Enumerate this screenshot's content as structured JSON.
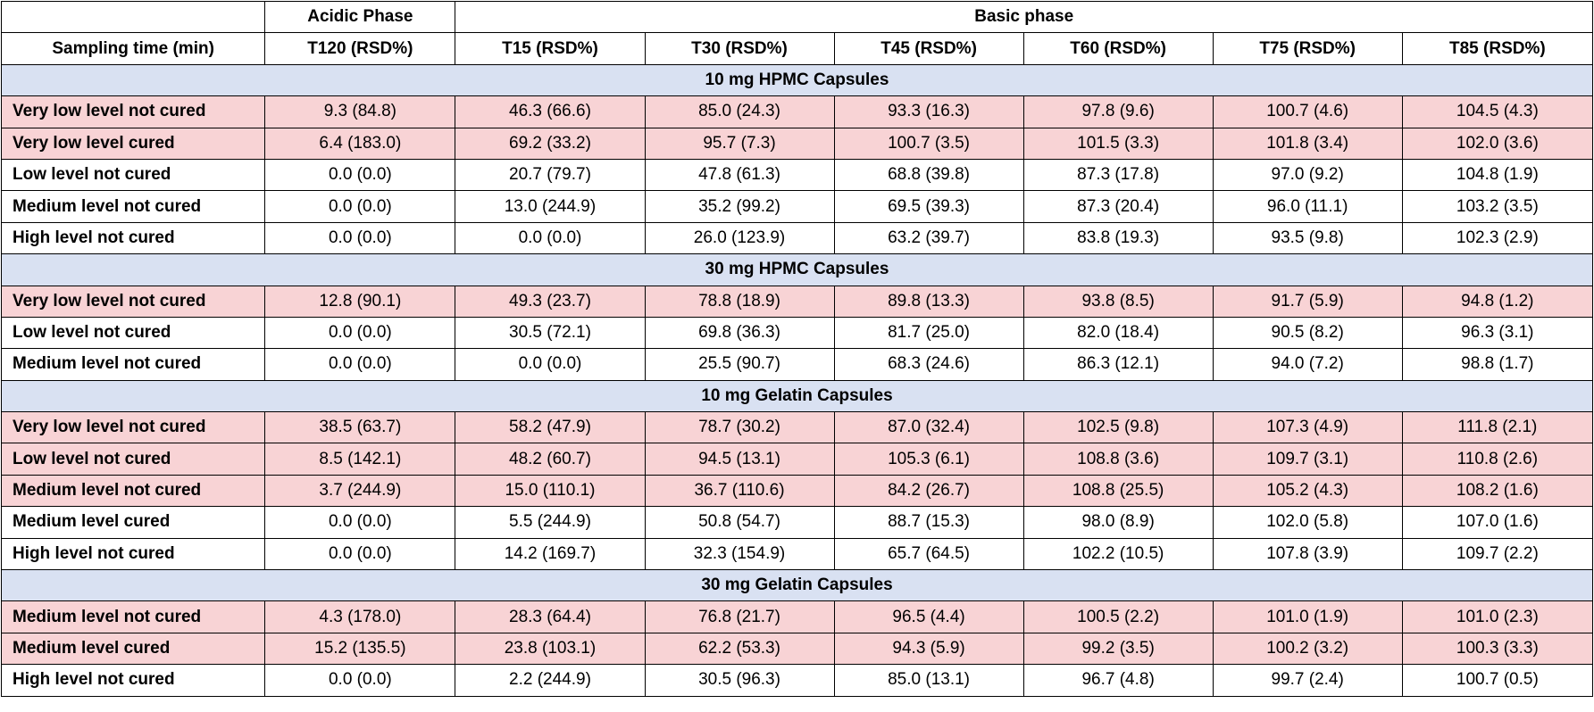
{
  "header": {
    "phase_blank": "",
    "acidic": "Acidic Phase",
    "basic": "Basic phase",
    "sampling_label": "Sampling time (min)",
    "columns": [
      "T120 (RSD%)",
      "T15 (RSD%)",
      "T30 (RSD%)",
      "T45 (RSD%)",
      "T60 (RSD%)",
      "T75 (RSD%)",
      "T85 (RSD%)"
    ]
  },
  "sections": [
    {
      "title": "10 mg HPMC Capsules",
      "rows": [
        {
          "label": "Very low level not cured",
          "highlight": true,
          "values": [
            "9.3 (84.8)",
            "46.3 (66.6)",
            "85.0 (24.3)",
            "93.3 (16.3)",
            "97.8 (9.6)",
            "100.7 (4.6)",
            "104.5 (4.3)"
          ]
        },
        {
          "label": "Very low level cured",
          "highlight": true,
          "values": [
            "6.4 (183.0)",
            "69.2 (33.2)",
            "95.7 (7.3)",
            "100.7 (3.5)",
            "101.5 (3.3)",
            "101.8 (3.4)",
            "102.0 (3.6)"
          ]
        },
        {
          "label": "Low level not cured",
          "highlight": false,
          "values": [
            "0.0 (0.0)",
            "20.7 (79.7)",
            "47.8 (61.3)",
            "68.8 (39.8)",
            "87.3 (17.8)",
            "97.0 (9.2)",
            "104.8 (1.9)"
          ]
        },
        {
          "label": "Medium level not cured",
          "highlight": false,
          "values": [
            "0.0 (0.0)",
            "13.0 (244.9)",
            "35.2 (99.2)",
            "69.5 (39.3)",
            "87.3 (20.4)",
            "96.0 (11.1)",
            "103.2 (3.5)"
          ]
        },
        {
          "label": "High level not cured",
          "highlight": false,
          "values": [
            "0.0 (0.0)",
            "0.0 (0.0)",
            "26.0 (123.9)",
            "63.2 (39.7)",
            "83.8 (19.3)",
            "93.5 (9.8)",
            "102.3 (2.9)"
          ]
        }
      ]
    },
    {
      "title": "30 mg HPMC Capsules",
      "rows": [
        {
          "label": "Very low level not cured",
          "highlight": true,
          "values": [
            "12.8 (90.1)",
            "49.3 (23.7)",
            "78.8 (18.9)",
            "89.8 (13.3)",
            "93.8 (8.5)",
            "91.7 (5.9)",
            "94.8 (1.2)"
          ]
        },
        {
          "label": "Low level not cured",
          "highlight": false,
          "values": [
            "0.0 (0.0)",
            "30.5 (72.1)",
            "69.8 (36.3)",
            "81.7 (25.0)",
            "82.0 (18.4)",
            "90.5 (8.2)",
            "96.3 (3.1)"
          ]
        },
        {
          "label": "Medium level not cured",
          "highlight": false,
          "values": [
            "0.0 (0.0)",
            "0.0 (0.0)",
            "25.5 (90.7)",
            "68.3 (24.6)",
            "86.3 (12.1)",
            "94.0 (7.2)",
            "98.8 (1.7)"
          ]
        }
      ]
    },
    {
      "title": "10 mg Gelatin Capsules",
      "rows": [
        {
          "label": "Very low level not cured",
          "highlight": true,
          "values": [
            "38.5 (63.7)",
            "58.2 (47.9)",
            "78.7 (30.2)",
            "87.0 (32.4)",
            "102.5 (9.8)",
            "107.3 (4.9)",
            "111.8 (2.1)"
          ]
        },
        {
          "label": "Low level not cured",
          "highlight": true,
          "values": [
            "8.5 (142.1)",
            "48.2 (60.7)",
            "94.5 (13.1)",
            "105.3 (6.1)",
            "108.8 (3.6)",
            "109.7 (3.1)",
            "110.8 (2.6)"
          ]
        },
        {
          "label": "Medium level not cured",
          "highlight": true,
          "values": [
            "3.7 (244.9)",
            "15.0 (110.1)",
            "36.7 (110.6)",
            "84.2 (26.7)",
            "108.8 (25.5)",
            "105.2 (4.3)",
            "108.2 (1.6)"
          ]
        },
        {
          "label": "Medium level cured",
          "highlight": false,
          "values": [
            "0.0 (0.0)",
            "5.5 (244.9)",
            "50.8 (54.7)",
            "88.7 (15.3)",
            "98.0 (8.9)",
            "102.0 (5.8)",
            "107.0 (1.6)"
          ]
        },
        {
          "label": "High level not cured",
          "highlight": false,
          "values": [
            "0.0 (0.0)",
            "14.2 (169.7)",
            "32.3 (154.9)",
            "65.7 (64.5)",
            "102.2 (10.5)",
            "107.8 (3.9)",
            "109.7 (2.2)"
          ]
        }
      ]
    },
    {
      "title": "30 mg Gelatin Capsules",
      "rows": [
        {
          "label": "Medium level not cured",
          "highlight": true,
          "values": [
            "4.3 (178.0)",
            "28.3 (64.4)",
            "76.8 (21.7)",
            "96.5 (4.4)",
            "100.5 (2.2)",
            "101.0 (1.9)",
            "101.0 (2.3)"
          ]
        },
        {
          "label": "Medium level cured",
          "highlight": true,
          "values": [
            "15.2 (135.5)",
            "23.8 (103.1)",
            "62.2 (53.3)",
            "94.3 (5.9)",
            "99.2 (3.5)",
            "100.2 (3.2)",
            "100.3 (3.3)"
          ]
        },
        {
          "label": "High level not cured",
          "highlight": false,
          "values": [
            "0.0 (0.0)",
            "2.2 (244.9)",
            "30.5 (96.3)",
            "85.0 (13.1)",
            "96.7 (4.8)",
            "99.7 (2.4)",
            "100.7 (0.5)"
          ]
        }
      ]
    }
  ],
  "colors": {
    "section_bg": "#d9e1f2",
    "highlight_bg": "#f8d3d5",
    "border": "#000000"
  }
}
